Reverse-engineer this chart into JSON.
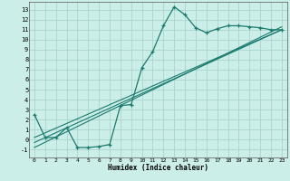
{
  "xlabel": "Humidex (Indice chaleur)",
  "background_color": "#cceee8",
  "grid_color": "#aad4ce",
  "line_color": "#1a7a6e",
  "xlim": [
    -0.5,
    23.5
  ],
  "ylim": [
    -1.8,
    13.8
  ],
  "xticks": [
    0,
    1,
    2,
    3,
    4,
    5,
    6,
    7,
    8,
    9,
    10,
    11,
    12,
    13,
    14,
    15,
    16,
    17,
    18,
    19,
    20,
    21,
    22,
    23
  ],
  "yticks": [
    -1,
    0,
    1,
    2,
    3,
    4,
    5,
    6,
    7,
    8,
    9,
    10,
    11,
    12,
    13
  ],
  "curve1_x": [
    0,
    1,
    2,
    3,
    4,
    5,
    6,
    7,
    8,
    9,
    10,
    11,
    12,
    13,
    14,
    15,
    16,
    17,
    18,
    19,
    20,
    21,
    22,
    23
  ],
  "curve1_y": [
    2.5,
    0.2,
    0.2,
    1.2,
    -0.8,
    -0.8,
    -0.7,
    -0.5,
    3.4,
    3.5,
    7.2,
    8.8,
    11.4,
    13.3,
    12.5,
    11.2,
    10.7,
    11.1,
    11.4,
    11.4,
    11.3,
    11.2,
    11.0,
    11.0
  ],
  "line1_x": [
    0,
    23
  ],
  "line1_y": [
    -0.3,
    11.0
  ],
  "line2_x": [
    0,
    23
  ],
  "line2_y": [
    -0.8,
    11.3
  ],
  "line3_x": [
    0,
    23
  ],
  "line3_y": [
    0.2,
    11.0
  ]
}
